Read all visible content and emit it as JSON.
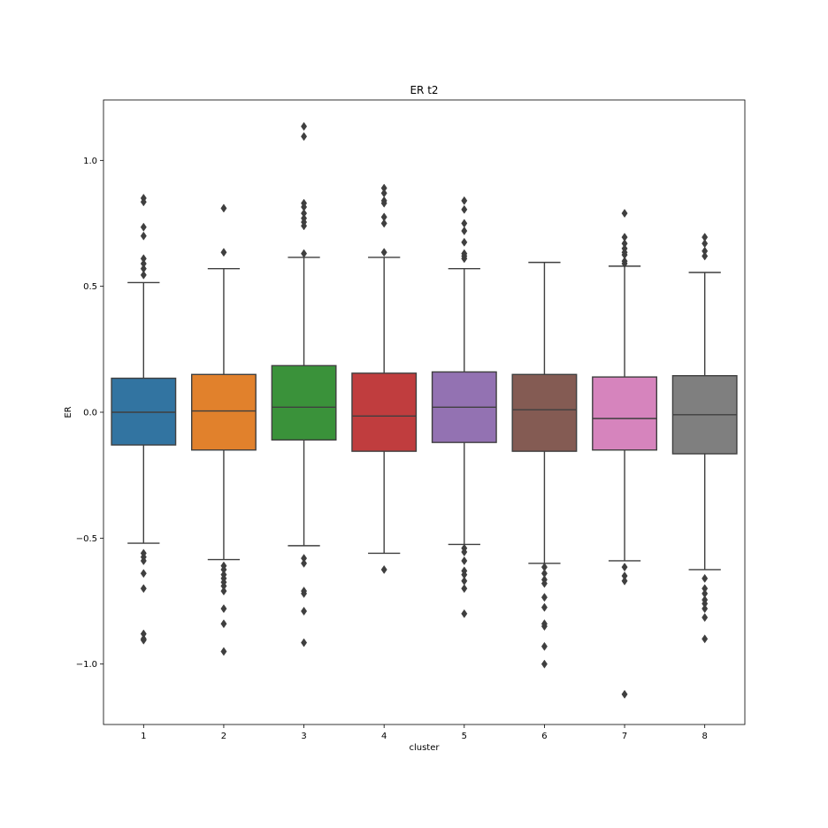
{
  "chart_data": {
    "type": "box",
    "title": "ER t2",
    "xlabel": "cluster",
    "ylabel": "ER",
    "ylim": [
      -1.24,
      1.24
    ],
    "yticks": [
      -1.0,
      -0.5,
      0.0,
      0.5,
      1.0
    ],
    "ytick_labels": [
      "−1.0",
      "−0.5",
      "0.0",
      "0.5",
      "1.0"
    ],
    "categories": [
      "1",
      "2",
      "3",
      "4",
      "5",
      "6",
      "7",
      "8"
    ],
    "grid": false,
    "boxes": [
      {
        "color": "#3274a1",
        "whisker_low": -0.52,
        "q1": -0.13,
        "median": 0.0,
        "q3": 0.135,
        "whisker_high": 0.515,
        "outliers": [
          0.85,
          0.835,
          0.735,
          0.7,
          0.61,
          0.59,
          0.57,
          0.545,
          -0.56,
          -0.575,
          -0.59,
          -0.64,
          -0.7,
          -0.88,
          -0.9,
          -0.905
        ]
      },
      {
        "color": "#e1812c",
        "whisker_low": -0.585,
        "q1": -0.15,
        "median": 0.005,
        "q3": 0.15,
        "whisker_high": 0.57,
        "outliers": [
          0.81,
          0.635,
          -0.61,
          -0.625,
          -0.645,
          -0.66,
          -0.675,
          -0.69,
          -0.71,
          -0.78,
          -0.84,
          -0.95
        ]
      },
      {
        "color": "#3a923a",
        "whisker_low": -0.53,
        "q1": -0.11,
        "median": 0.02,
        "q3": 0.185,
        "whisker_high": 0.615,
        "outliers": [
          1.135,
          1.095,
          0.83,
          0.815,
          0.79,
          0.77,
          0.755,
          0.74,
          0.63,
          -0.58,
          -0.6,
          -0.71,
          -0.72,
          -0.79,
          -0.915
        ]
      },
      {
        "color": "#c03d3e",
        "whisker_low": -0.56,
        "q1": -0.155,
        "median": -0.015,
        "q3": 0.155,
        "whisker_high": 0.615,
        "outliers": [
          0.89,
          0.87,
          0.84,
          0.83,
          0.775,
          0.75,
          0.635,
          -0.625
        ]
      },
      {
        "color": "#9372b2",
        "whisker_low": -0.525,
        "q1": -0.12,
        "median": 0.02,
        "q3": 0.16,
        "whisker_high": 0.57,
        "outliers": [
          0.84,
          0.805,
          0.75,
          0.72,
          0.675,
          0.63,
          0.62,
          0.61,
          -0.54,
          -0.555,
          -0.59,
          -0.63,
          -0.645,
          -0.67,
          -0.7,
          -0.8
        ]
      },
      {
        "color": "#845b53",
        "whisker_low": -0.6,
        "q1": -0.155,
        "median": 0.01,
        "q3": 0.15,
        "whisker_high": 0.595,
        "outliers": [
          -0.615,
          -0.64,
          -0.665,
          -0.68,
          -0.735,
          -0.775,
          -0.84,
          -0.85,
          -0.93,
          -1.0
        ]
      },
      {
        "color": "#d684bd",
        "whisker_low": -0.59,
        "q1": -0.15,
        "median": -0.025,
        "q3": 0.14,
        "whisker_high": 0.58,
        "outliers": [
          0.79,
          0.695,
          0.67,
          0.65,
          0.635,
          0.625,
          0.6,
          0.59,
          -0.615,
          -0.65,
          -0.67,
          -1.12
        ]
      },
      {
        "color": "#7f7f7f",
        "whisker_low": -0.625,
        "q1": -0.165,
        "median": -0.01,
        "q3": 0.145,
        "whisker_high": 0.555,
        "outliers": [
          0.695,
          0.67,
          0.64,
          0.62,
          -0.66,
          -0.7,
          -0.72,
          -0.745,
          -0.76,
          -0.78,
          -0.815,
          -0.9
        ]
      }
    ]
  }
}
